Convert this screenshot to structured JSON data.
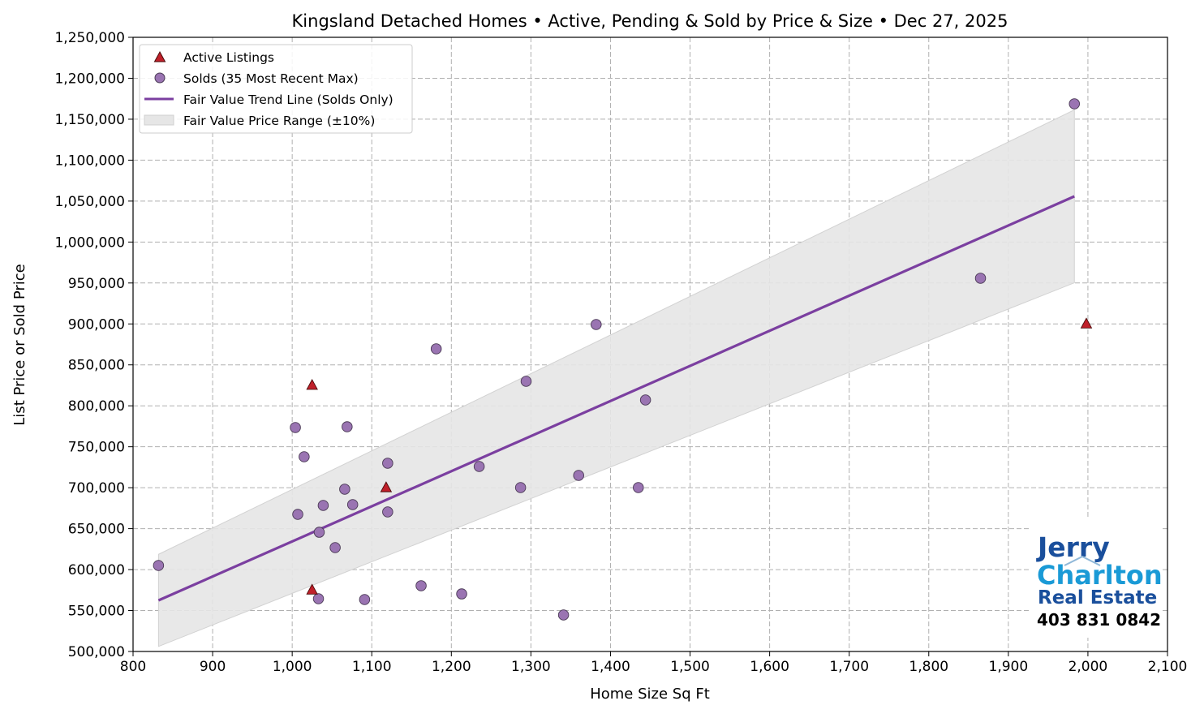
{
  "chart_data": {
    "type": "scatter",
    "title": "Kingsland Detached Homes • Active, Pending & Sold by Price & Size • Dec 27, 2025",
    "xlabel": "Home Size Sq Ft",
    "ylabel": "List Price or Sold Price",
    "xlim": [
      800,
      2100
    ],
    "ylim": [
      500000,
      1250000
    ],
    "xticks": [
      800,
      900,
      1000,
      1100,
      1200,
      1300,
      1400,
      1500,
      1600,
      1700,
      1800,
      1900,
      2000,
      2100
    ],
    "yticks": [
      500000,
      550000,
      600000,
      650000,
      700000,
      750000,
      800000,
      850000,
      900000,
      950000,
      1000000,
      1050000,
      1100000,
      1150000,
      1200000,
      1250000
    ],
    "xtick_labels": [
      "800",
      "900",
      "1,000",
      "1,100",
      "1,200",
      "1,300",
      "1,400",
      "1,500",
      "1,600",
      "1,700",
      "1,800",
      "1,900",
      "2,000",
      "2,100"
    ],
    "ytick_labels": [
      "500,000",
      "550,000",
      "600,000",
      "650,000",
      "700,000",
      "750,000",
      "800,000",
      "850,000",
      "900,000",
      "950,000",
      "1,000,000",
      "1,050,000",
      "1,100,000",
      "1,150,000",
      "1,200,000",
      "1,250,000"
    ],
    "grid": true,
    "legend_position": "top-left",
    "series": [
      {
        "name": "Active Listings",
        "marker": "triangle",
        "color": "#c0202a",
        "points": [
          [
            1025,
            825000
          ],
          [
            1118,
            700000
          ],
          [
            1025,
            575000
          ],
          [
            1998,
            900000
          ]
        ]
      },
      {
        "name": "Solds (35 Most Recent Max)",
        "marker": "circle",
        "color": "#9a74b2",
        "points": [
          [
            832,
            605000
          ],
          [
            1004,
            773500
          ],
          [
            1015,
            737800
          ],
          [
            1007,
            667400
          ],
          [
            1034,
            645600
          ],
          [
            1033,
            564400
          ],
          [
            1039,
            678300
          ],
          [
            1054,
            626800
          ],
          [
            1066,
            698200
          ],
          [
            1069,
            774400
          ],
          [
            1076,
            679300
          ],
          [
            1091,
            563400
          ],
          [
            1120,
            729900
          ],
          [
            1120,
            670400
          ],
          [
            1162,
            580300
          ],
          [
            1181,
            869600
          ],
          [
            1213,
            570300
          ],
          [
            1235,
            725900
          ],
          [
            1287,
            700100
          ],
          [
            1294,
            829900
          ],
          [
            1341,
            544600
          ],
          [
            1360,
            715000
          ],
          [
            1382,
            899300
          ],
          [
            1435,
            700100
          ],
          [
            1444,
            807100
          ],
          [
            1865,
            955800
          ],
          [
            1983,
            1168800
          ]
        ]
      },
      {
        "name": "Fair Value Trend Line (Solds Only)",
        "type": "line",
        "color": "#7b3fa0",
        "points": [
          [
            832,
            562400
          ],
          [
            1983,
            1055800
          ]
        ]
      },
      {
        "name": "Fair Value Price Range (±10%)",
        "type": "band",
        "color": "#e6e6e6",
        "range_pct": 10
      }
    ]
  },
  "logo": {
    "line1": "Jerry",
    "line2": "Charlton",
    "line3": "Real Estate",
    "phone": "403 831 0842",
    "colors": {
      "dark_blue": "#1a4f9c",
      "light_blue": "#1a9ad6"
    }
  }
}
